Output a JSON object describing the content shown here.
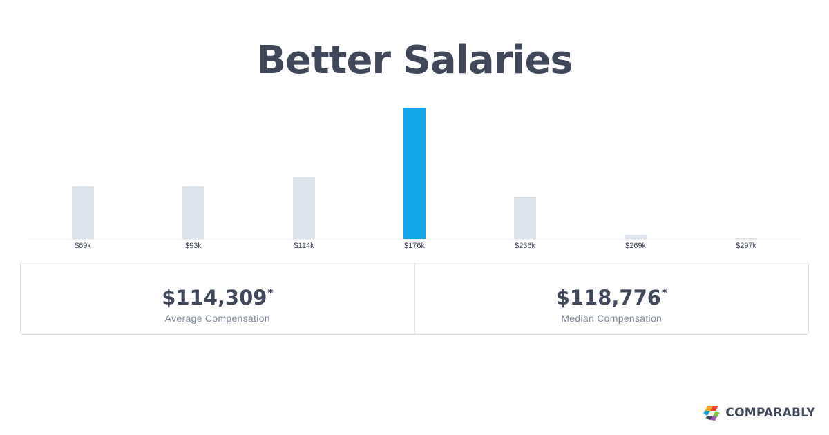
{
  "title": "Better Salaries",
  "chart_data": {
    "type": "bar",
    "categories": [
      "$69k",
      "$93k",
      "$114k",
      "$176k",
      "$236k",
      "$269k",
      "$297k"
    ],
    "values": [
      76,
      76,
      89,
      190,
      61,
      6,
      1
    ],
    "highlight_index": 3,
    "ylim": [
      0,
      190
    ],
    "grid": false,
    "colors": {
      "bar": "#dfe5ec",
      "highlight": "#12a5e8",
      "baseline": "#eef1f4",
      "tick_label": "#3f4759"
    }
  },
  "stats": [
    {
      "value": "$114,309",
      "footnote": "*",
      "label": "Average Compensation"
    },
    {
      "value": "$118,776",
      "footnote": "*",
      "label": "Median Compensation"
    }
  ],
  "brand": {
    "name": "COMPARABLY",
    "icon": "comparably-logo-icon"
  }
}
